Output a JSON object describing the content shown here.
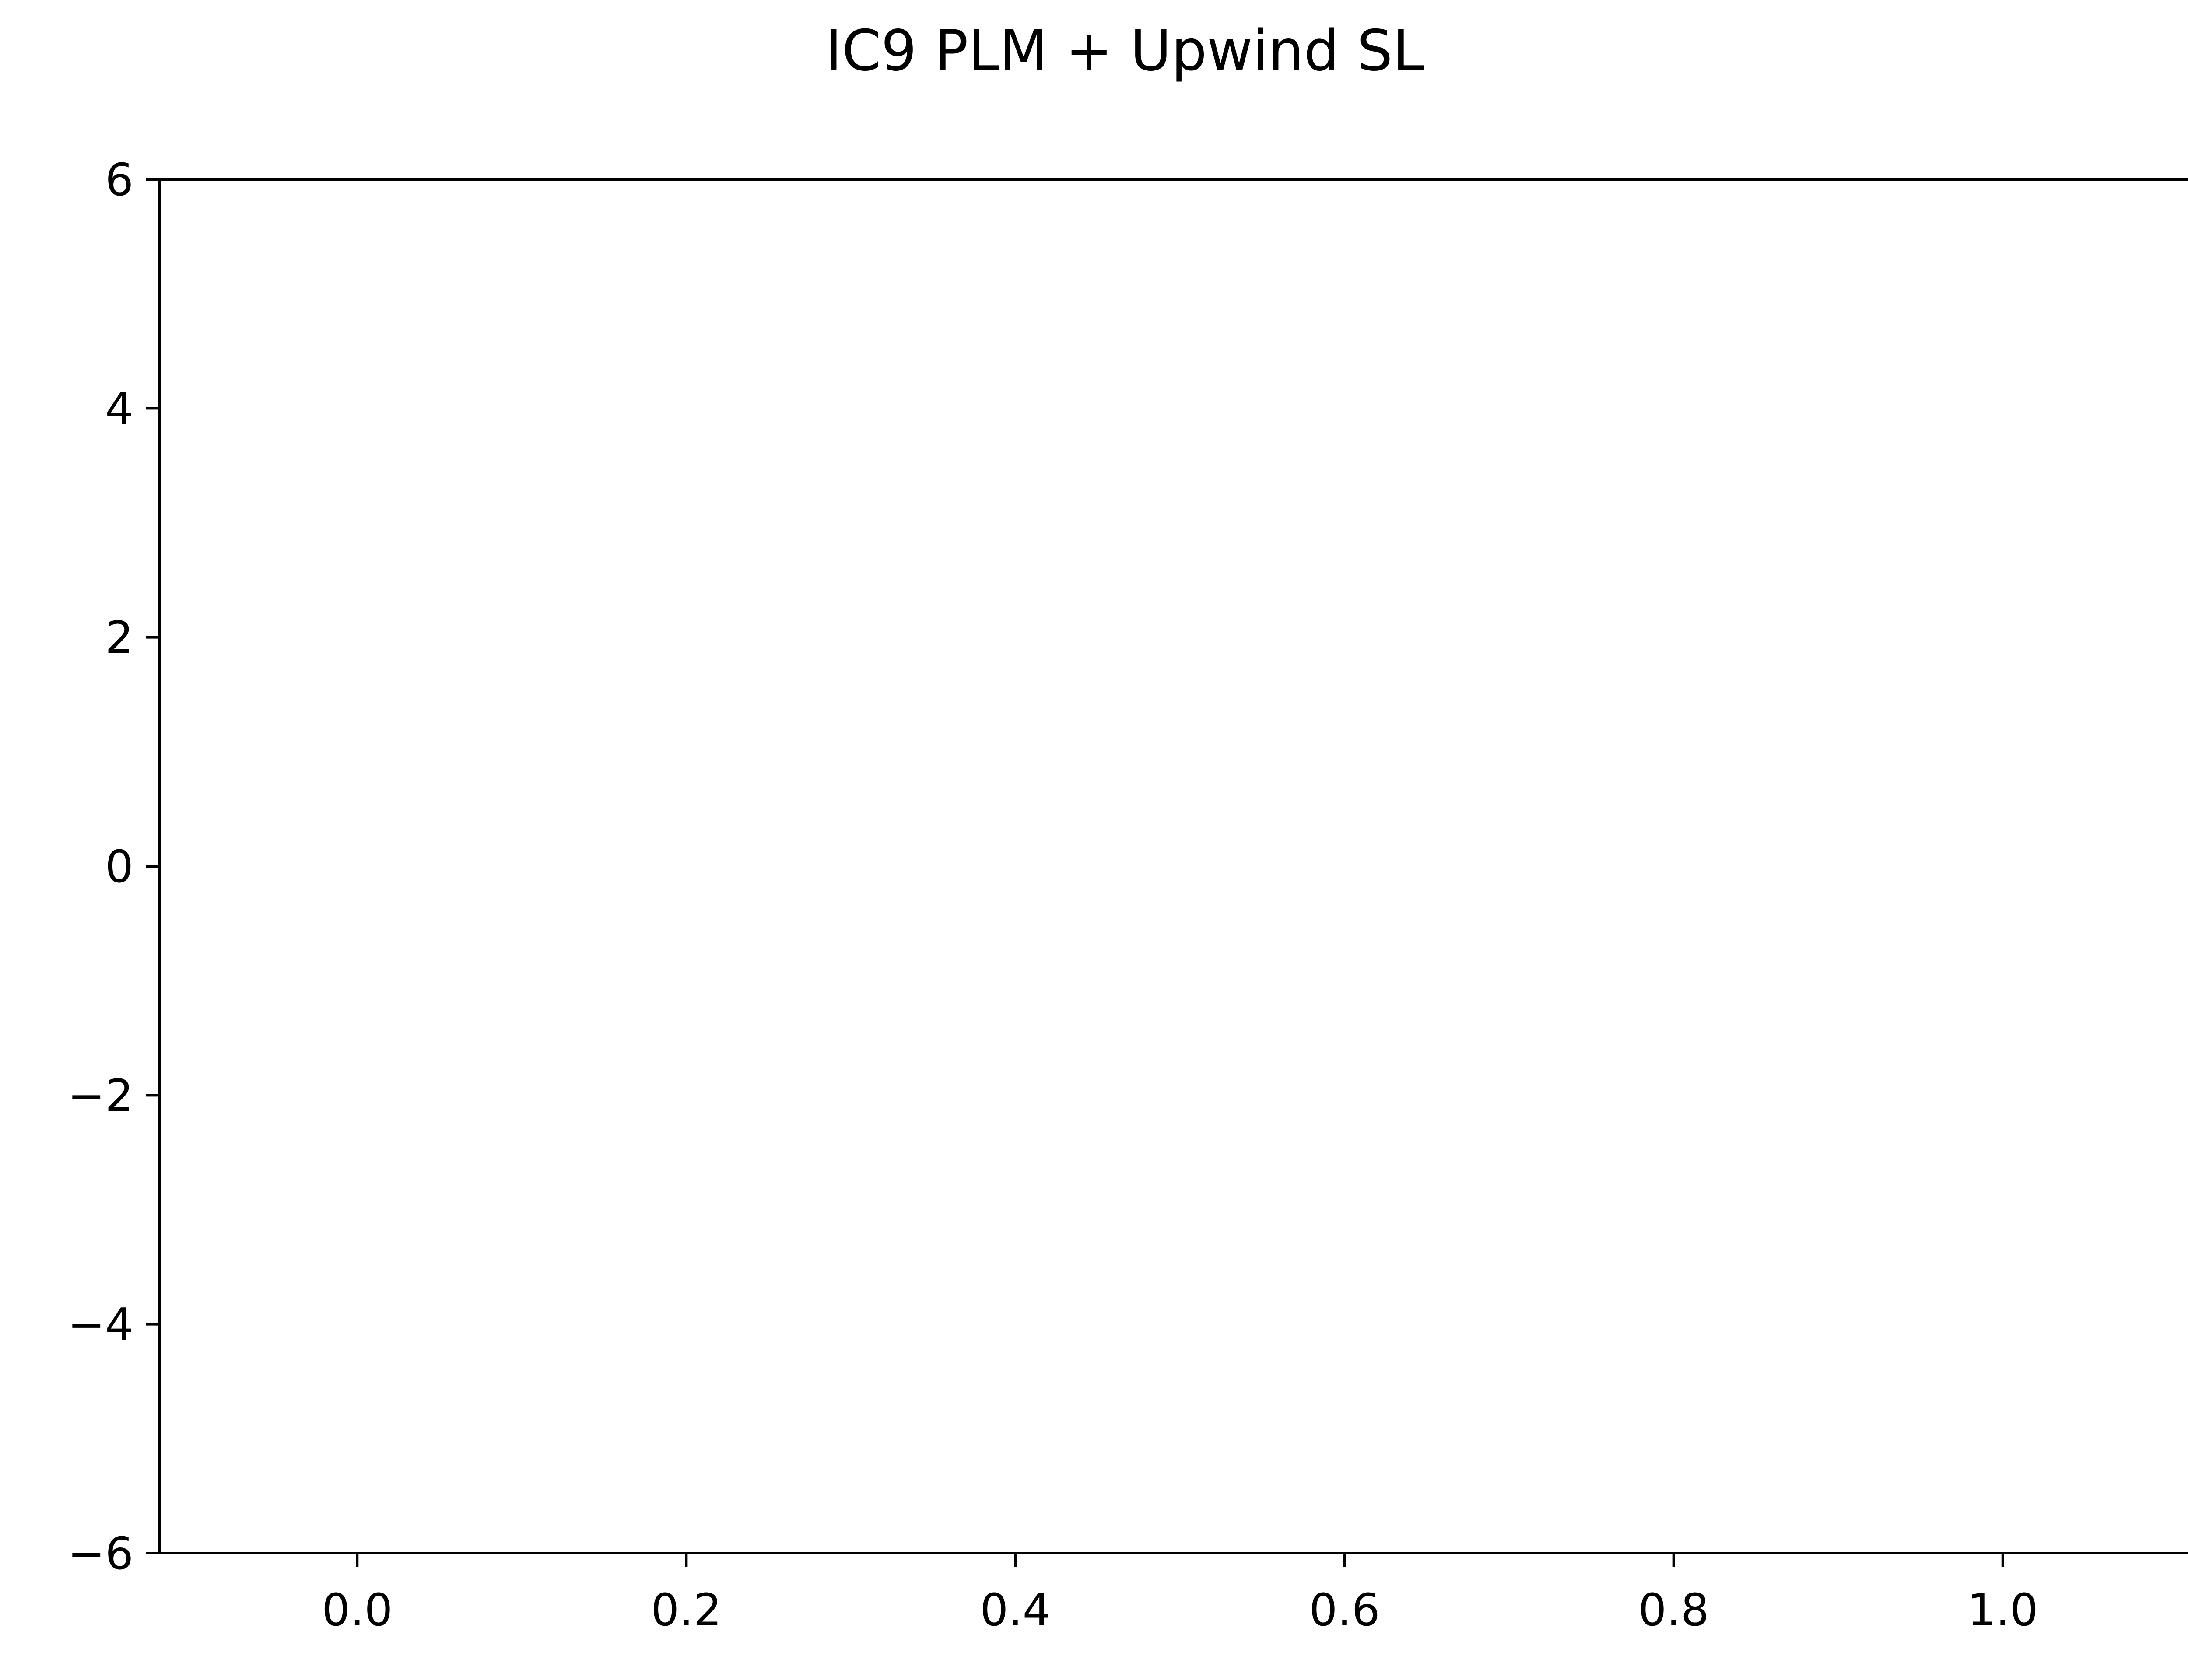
{
  "chart_data": {
    "type": "line",
    "title": "IC9 PLM + Upwind SL",
    "xlabel": "",
    "ylabel": "",
    "xlim": [
      -0.12,
      1.12
    ],
    "ylim": [
      -6,
      6
    ],
    "x_ticks": [
      0.0,
      0.2,
      0.4,
      0.6,
      0.8,
      1.0
    ],
    "x_tick_labels": [
      "0.0",
      "0.2",
      "0.4",
      "0.6",
      "0.8",
      "1.0"
    ],
    "y_ticks": [
      6,
      4,
      2,
      0,
      -2,
      -4,
      -6
    ],
    "y_tick_labels": [
      "6",
      "4",
      "2",
      "0",
      "−2",
      "−4",
      "−6"
    ],
    "grid": false,
    "series": []
  }
}
